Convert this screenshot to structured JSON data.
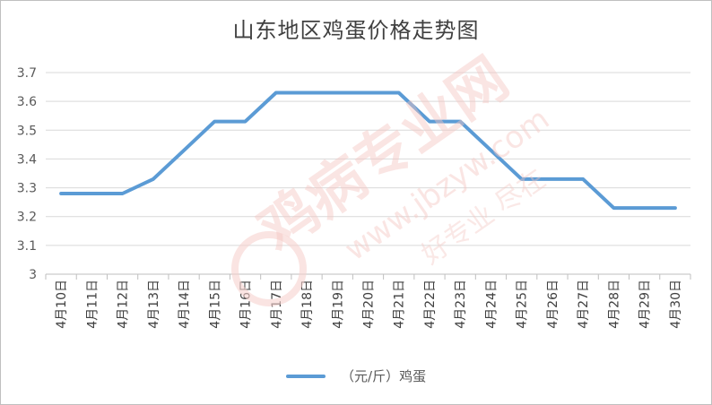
{
  "chart_data": {
    "type": "line",
    "title": "山东地区鸡蛋价格走势图",
    "categories": [
      "4月10日",
      "4月11日",
      "4月12日",
      "4月13日",
      "4月14日",
      "4月15日",
      "4月16日",
      "4月17日",
      "4月18日",
      "4月19日",
      "4月20日",
      "4月21日",
      "4月22日",
      "4月23日",
      "4月24日",
      "4月25日",
      "4月26日",
      "4月27日",
      "4月28日",
      "4月29日",
      "4月30日"
    ],
    "series": [
      {
        "name": "（元/斤）鸡蛋",
        "values": [
          3.28,
          3.28,
          3.28,
          3.33,
          3.43,
          3.53,
          3.53,
          3.63,
          3.63,
          3.63,
          3.63,
          3.63,
          3.53,
          3.53,
          3.43,
          3.33,
          3.33,
          3.33,
          3.23,
          3.23,
          3.23
        ],
        "color": "#5b9bd5"
      }
    ],
    "ylim": [
      3,
      3.7
    ],
    "yticks": [
      "3",
      "3.1",
      "3.2",
      "3.3",
      "3.4",
      "3.5",
      "3.6",
      "3.7"
    ],
    "grid": true,
    "legend": "bottom",
    "xlabel": "",
    "ylabel": ""
  },
  "watermark": {
    "main_text": "鸡病专业网",
    "url_text": "www.jbzyw.com",
    "slogan_text": "好专业 尽在"
  },
  "colors": {
    "line": "#5b9bd5",
    "grid": "#d9d9d9",
    "axis_text": "#595959",
    "watermark": "#f4c7c3"
  }
}
